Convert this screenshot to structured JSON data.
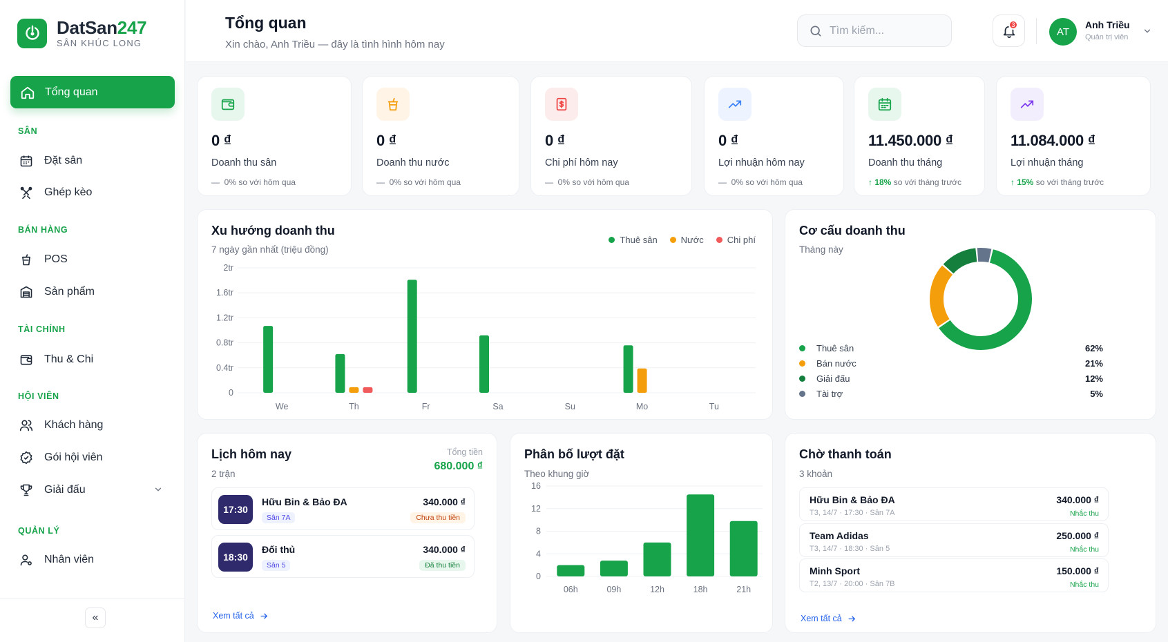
{
  "brand": {
    "name_a": "DatSan",
    "name_b": "247",
    "subtitle": "SÂN KHÚC LONG"
  },
  "sidebar": {
    "active": "Tổng quan",
    "sections": [
      {
        "title": "SÂN",
        "items": [
          "Đặt sân",
          "Ghép kèo"
        ]
      },
      {
        "title": "BÁN HÀNG",
        "items": [
          "POS",
          "Sản phẩm"
        ]
      },
      {
        "title": "TÀI CHÍNH",
        "items": [
          "Thu & Chi"
        ]
      },
      {
        "title": "HỘI VIÊN",
        "items": [
          "Khách hàng",
          "Gói hội viên",
          "Giải đấu"
        ]
      },
      {
        "title": "QUẢN LÝ",
        "items": [
          "Nhân viên"
        ]
      }
    ],
    "collapse": "«"
  },
  "header": {
    "title": "Tổng quan",
    "subtitle": "Xin chào, Anh Triều — đây là tình hình hôm nay",
    "search_placeholder": "Tìm kiếm...",
    "notification_count": "3",
    "user": {
      "initials": "AT",
      "name": "Anh Triều",
      "role": "Quản trị viên"
    }
  },
  "kpis": [
    {
      "value": "0 ₫",
      "label": "Doanh thu sân",
      "delta_prefix": "—",
      "delta_pct": "",
      "delta_text": "0% so với hôm qua",
      "icon": "wallet-icon",
      "color": "#16a34a",
      "bg": "#e8f7ee"
    },
    {
      "value": "0 ₫",
      "label": "Doanh thu nước",
      "delta_prefix": "—",
      "delta_pct": "",
      "delta_text": "0% so với hôm qua",
      "icon": "drink-icon",
      "color": "#f59e0b",
      "bg": "#fff4e5"
    },
    {
      "value": "0 ₫",
      "label": "Chi phí hôm nay",
      "delta_prefix": "—",
      "delta_pct": "",
      "delta_text": "0% so với hôm qua",
      "icon": "receipt-icon",
      "color": "#ef4444",
      "bg": "#fdecec"
    },
    {
      "value": "0 ₫",
      "label": "Lợi nhuận hôm nay",
      "delta_prefix": "—",
      "delta_pct": "",
      "delta_text": "0% so với hôm qua",
      "icon": "trend-up-icon",
      "color": "#3b82f6",
      "bg": "#eef4ff"
    },
    {
      "value": "11.450.000 ₫",
      "label": "Doanh thu tháng",
      "delta_prefix": "↑",
      "delta_pct": "18%",
      "delta_text": "so với tháng trước",
      "icon": "calendar-icon",
      "color": "#16a34a",
      "bg": "#e8f7ee"
    },
    {
      "value": "11.084.000 ₫",
      "label": "Lợi nhuận tháng",
      "delta_prefix": "↑",
      "delta_pct": "15%",
      "delta_text": "so với tháng trước",
      "icon": "trend-up-icon",
      "color": "#7c3aed",
      "bg": "#f3eefe"
    }
  ],
  "revenue_trend": {
    "title": "Xu hướng doanh thu",
    "subtitle": "7 ngày gần nhất (triệu đồng)"
  },
  "revenue_mix": {
    "title": "Cơ cấu doanh thu",
    "subtitle": "Tháng này"
  },
  "schedule": {
    "title": "Lịch hôm nay",
    "count": "2 trận",
    "total_label": "Tổng tiền",
    "total": "680.000 ₫",
    "bookings": [
      {
        "time": "17:30",
        "name": "Hữu Bin & Bảo ĐA",
        "court": "Sân 7A",
        "amount": "340.000 ₫",
        "status": "Chưa thu tiền",
        "paid": false
      },
      {
        "time": "18:30",
        "name": "Đối thủ",
        "court": "Sân 5",
        "amount": "340.000 ₫",
        "status": "Đã thu tiền",
        "paid": true
      }
    ],
    "see_all": "Xem tất cả"
  },
  "distribution": {
    "title": "Phân bố lượt đặt",
    "subtitle": "Theo khung giờ"
  },
  "pending": {
    "title": "Chờ thanh toán",
    "count": "3 khoản",
    "items": [
      {
        "name": "Hữu Bin & Bảo ĐA",
        "meta": "T3, 14/7 · 17:30 · Sân 7A",
        "amount": "340.000 ₫",
        "action": "Nhắc thu"
      },
      {
        "name": "Team Adidas",
        "meta": "T3, 14/7 · 18:30 · Sân 5",
        "amount": "250.000 ₫",
        "action": "Nhắc thu"
      },
      {
        "name": "Minh Sport",
        "meta": "T2, 13/7 · 20:00 · Sân 7B",
        "amount": "150.000 ₫",
        "action": "Nhắc thu"
      }
    ],
    "see_all": "Xem tất cả"
  },
  "chart_data": [
    {
      "type": "bar",
      "title": "Xu hướng doanh thu",
      "subtitle": "7 ngày gần nhất (triệu đồng)",
      "categories": [
        "We",
        "Th",
        "Fr",
        "Sa",
        "Su",
        "Mo",
        "Tu"
      ],
      "yticks": [
        "0",
        "0.4tr",
        "0.8tr",
        "1.2tr",
        "1.6tr",
        "2tr"
      ],
      "ylim": [
        0,
        2
      ],
      "series": [
        {
          "name": "Thuê sân",
          "color": "#16a34a",
          "values": [
            1.07,
            0.62,
            1.81,
            0.92,
            0,
            0.76,
            0
          ]
        },
        {
          "name": "Nước",
          "color": "#f59e0b",
          "values": [
            0,
            0.09,
            0,
            0,
            0,
            0.39,
            0
          ]
        },
        {
          "name": "Chi phí",
          "color": "#f05a5a",
          "values": [
            0,
            0.09,
            0,
            0,
            0,
            0,
            0
          ]
        }
      ],
      "grid": true,
      "legend": "top-right"
    },
    {
      "type": "pie",
      "title": "Cơ cấu doanh thu",
      "subtitle": "Tháng này",
      "slices": [
        {
          "name": "Thuê sân",
          "value": 62,
          "label": "62%",
          "color": "#16a34a"
        },
        {
          "name": "Bán nước",
          "value": 21,
          "label": "21%",
          "color": "#f59e0b"
        },
        {
          "name": "Giải đấu",
          "value": 12,
          "label": "12%",
          "color": "#15803d"
        },
        {
          "name": "Tài trợ",
          "value": 5,
          "label": "5%",
          "color": "#64748b"
        }
      ]
    },
    {
      "type": "bar",
      "title": "Phân bố lượt đặt",
      "subtitle": "Theo khung giờ",
      "categories": [
        "06h",
        "09h",
        "12h",
        "18h",
        "21h"
      ],
      "yticks": [
        "0",
        "4",
        "8",
        "12",
        "16"
      ],
      "ylim": [
        0,
        16
      ],
      "series": [
        {
          "color": "#16a34a",
          "values": [
            2,
            2.8,
            6,
            14.5,
            9.8
          ]
        }
      ],
      "grid": true
    }
  ]
}
